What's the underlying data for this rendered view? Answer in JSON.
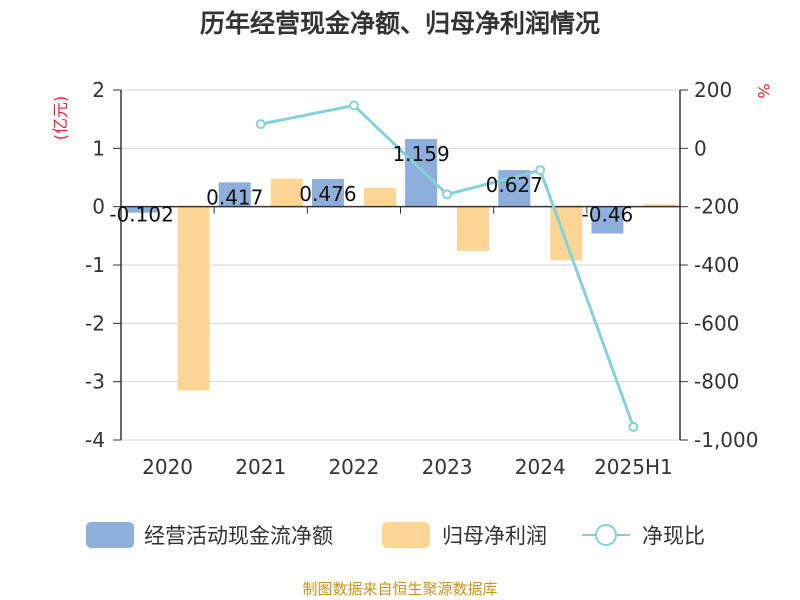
{
  "colors": {
    "cashflow": "#8eaedb",
    "profit": "#fdd595",
    "ratio": "#84d2d8",
    "unit": "#e8202c",
    "source": "#c8951b"
  },
  "source": "制图数据来自恒生聚源数据库",
  "chart_data": {
    "type": "bar",
    "title": "历年经营现金净额、归母净利润情况",
    "categories": [
      "2020",
      "2021",
      "2022",
      "2023",
      "2024",
      "2025H1"
    ],
    "left_axis": {
      "unit": "(亿元)",
      "ylim": [
        -4,
        2
      ],
      "ticks": [
        "2",
        "1",
        "0",
        "-1",
        "-2",
        "-3",
        "-4"
      ]
    },
    "right_axis": {
      "unit": "%",
      "ylim": [
        -1000,
        200
      ],
      "ticks": [
        "200",
        "0",
        "-200",
        "-400",
        "-600",
        "-800",
        "-1,000"
      ]
    },
    "grid": true,
    "legend_position": "bottom",
    "series": [
      {
        "name": "经营活动现金流净额",
        "kind": "bar",
        "axis": "left",
        "values": [
          -0.102,
          0.417,
          0.476,
          1.159,
          0.627,
          -0.46
        ],
        "labels": [
          "-0.102",
          "0.417",
          "0.476",
          "1.159",
          "0.627",
          "-0.46"
        ]
      },
      {
        "name": "归母净利润",
        "kind": "bar",
        "axis": "left",
        "values": [
          -3.15,
          0.48,
          0.32,
          -0.76,
          -0.92,
          0.04
        ]
      },
      {
        "name": "净现比",
        "kind": "line",
        "axis": "right",
        "values": [
          null,
          83,
          147,
          -158,
          -75,
          -955
        ]
      }
    ]
  }
}
